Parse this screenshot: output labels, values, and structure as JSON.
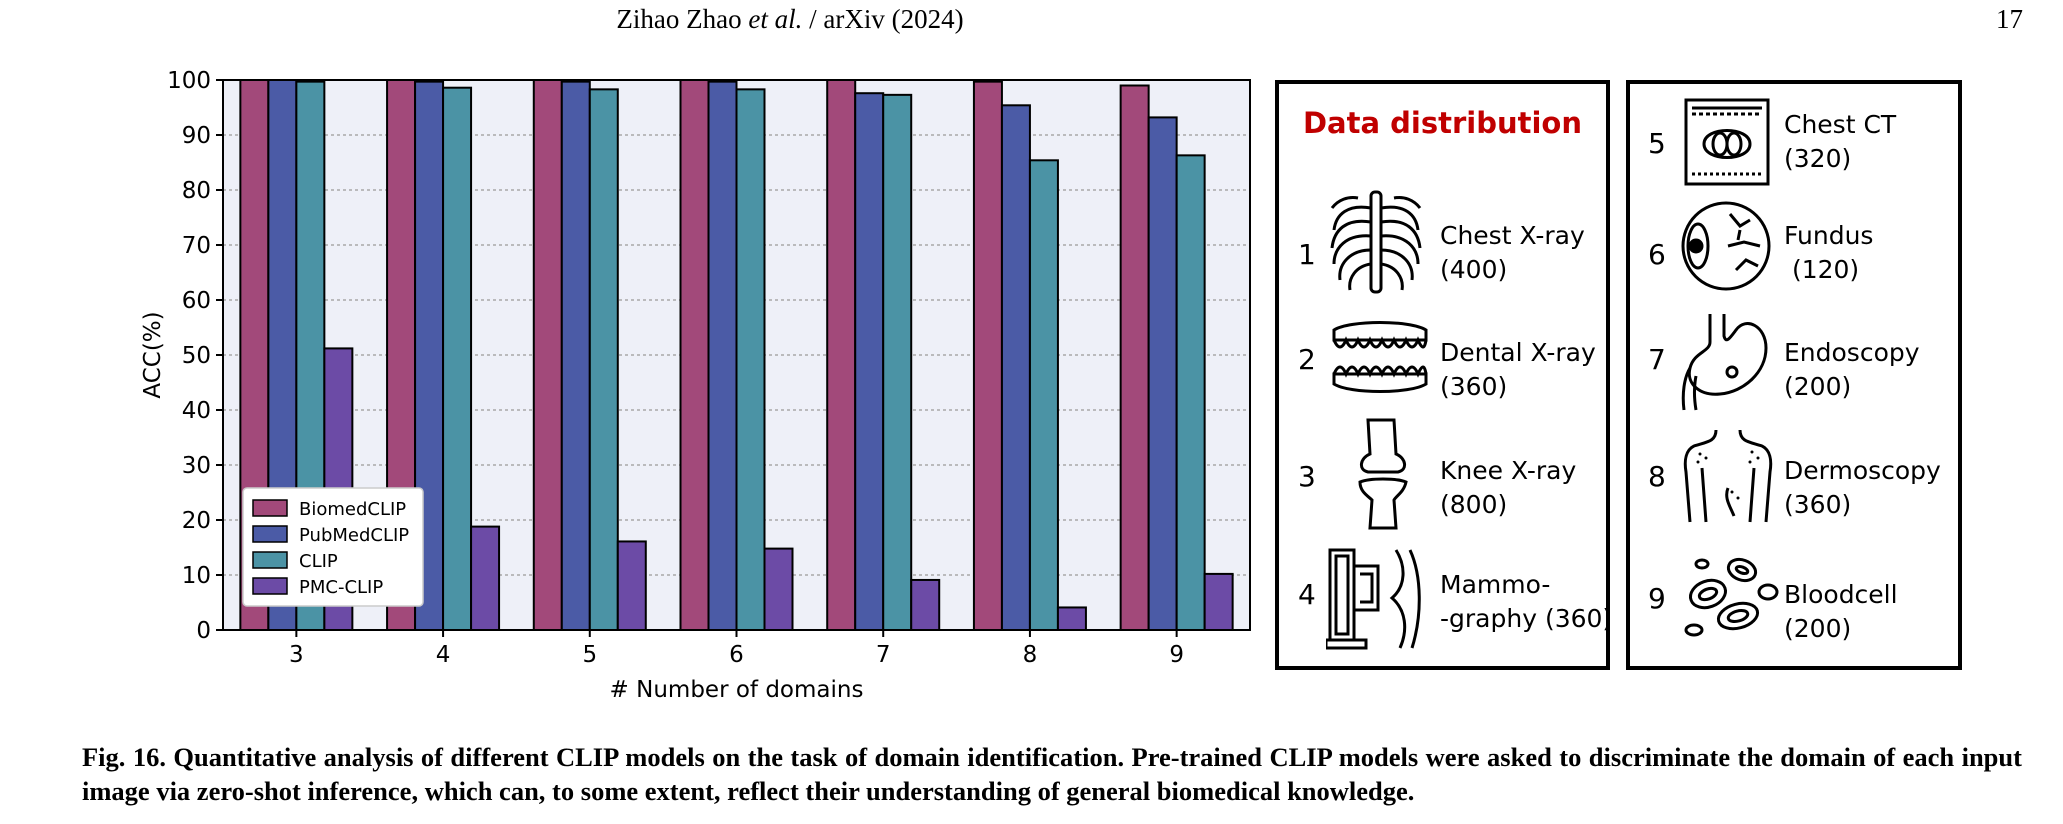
{
  "header": {
    "author": "Zihao Zhao",
    "etal": "et al.",
    "venue": "/ arXiv (2024)",
    "page_number": "17"
  },
  "chart_data": {
    "type": "bar",
    "categories": [
      "3",
      "4",
      "5",
      "6",
      "7",
      "8",
      "9"
    ],
    "series": [
      {
        "name": "BiomedCLIP",
        "color": "#a2497a",
        "values": [
          100,
          100,
          100,
          100,
          100,
          99.7,
          99
        ]
      },
      {
        "name": "PubMedCLIP",
        "color": "#4b5ba6",
        "values": [
          100,
          99.7,
          99.7,
          99.7,
          97.6,
          95.4,
          93.2
        ]
      },
      {
        "name": "CLIP",
        "color": "#4b93a5",
        "values": [
          99.7,
          98.6,
          98.3,
          98.3,
          97.3,
          85.4,
          86.3
        ]
      },
      {
        "name": "PMC-CLIP",
        "color": "#6c4ba6",
        "values": [
          51.2,
          18.8,
          16.1,
          14.8,
          9.1,
          4.1,
          10.2
        ]
      }
    ],
    "xlabel": "# Number of domains",
    "ylabel": "ACC(%)",
    "ylim": [
      0,
      100
    ],
    "yticks": [
      0,
      10,
      20,
      30,
      40,
      50,
      60,
      70,
      80,
      90,
      100
    ],
    "grid": "horizontal dotted",
    "legend_position": "lower-left",
    "background": "#eef0f8"
  },
  "distribution": {
    "title": "Data distribution",
    "items": [
      {
        "num": "1",
        "line1": "Chest X-ray",
        "line2": "(400)",
        "icon": "ribcage-icon"
      },
      {
        "num": "2",
        "line1": "Dental X-ray",
        "line2": "(360)",
        "icon": "teeth-icon"
      },
      {
        "num": "3",
        "line1": "Knee X-ray",
        "line2": "(800)",
        "icon": "knee-icon"
      },
      {
        "num": "4",
        "line1": "Mammo-",
        "line2": "-graphy (360)",
        "icon": "mammography-icon"
      },
      {
        "num": "5",
        "line1": "Chest CT",
        "line2": "(320)",
        "icon": "ct-scan-icon"
      },
      {
        "num": "6",
        "line1": "Fundus",
        "line2": " (120)",
        "icon": "eye-icon"
      },
      {
        "num": "7",
        "line1": "Endoscopy",
        "line2": "(200)",
        "icon": "stomach-icon"
      },
      {
        "num": "8",
        "line1": "Dermoscopy",
        "line2": "(360)",
        "icon": "skin-torso-icon"
      },
      {
        "num": "9",
        "line1": "Bloodcell",
        "line2": "(200)",
        "icon": "blood-cells-icon"
      }
    ]
  },
  "caption": {
    "label": "Fig. 16.",
    "text": "Quantitative analysis of different CLIP models on the task of domain identification.  Pre-trained CLIP models were asked to discriminate the domain of each input image via zero-shot inference, which can, to some extent, reflect their understanding of general biomedical knowledge."
  }
}
